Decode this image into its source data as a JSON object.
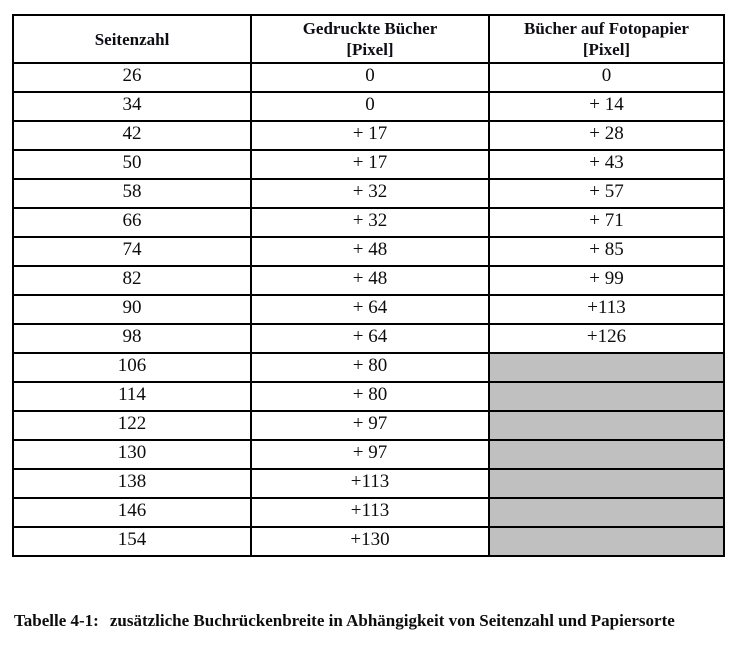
{
  "document": {
    "table": {
      "headers": [
        {
          "title": "Seitenzahl",
          "unit": ""
        },
        {
          "title": "Gedruckte Bücher",
          "unit": "[Pixel]"
        },
        {
          "title": "Bücher auf Fotopapier",
          "unit": "[Pixel]"
        }
      ],
      "rows": [
        {
          "seitenzahl": "26",
          "gedruckte_buecher": "0",
          "fotopapier": "0",
          "fotopapier_shaded": false
        },
        {
          "seitenzahl": "34",
          "gedruckte_buecher": "0",
          "fotopapier": "+ 14",
          "fotopapier_shaded": false
        },
        {
          "seitenzahl": "42",
          "gedruckte_buecher": "+ 17",
          "fotopapier": "+ 28",
          "fotopapier_shaded": false
        },
        {
          "seitenzahl": "50",
          "gedruckte_buecher": "+ 17",
          "fotopapier": "+ 43",
          "fotopapier_shaded": false
        },
        {
          "seitenzahl": "58",
          "gedruckte_buecher": "+ 32",
          "fotopapier": "+ 57",
          "fotopapier_shaded": false
        },
        {
          "seitenzahl": "66",
          "gedruckte_buecher": "+ 32",
          "fotopapier": "+ 71",
          "fotopapier_shaded": false
        },
        {
          "seitenzahl": "74",
          "gedruckte_buecher": "+ 48",
          "fotopapier": "+ 85",
          "fotopapier_shaded": false
        },
        {
          "seitenzahl": "82",
          "gedruckte_buecher": "+ 48",
          "fotopapier": "+ 99",
          "fotopapier_shaded": false
        },
        {
          "seitenzahl": "90",
          "gedruckte_buecher": "+ 64",
          "fotopapier": "+113",
          "fotopapier_shaded": false
        },
        {
          "seitenzahl": "98",
          "gedruckte_buecher": "+ 64",
          "fotopapier": "+126",
          "fotopapier_shaded": false
        },
        {
          "seitenzahl": "106",
          "gedruckte_buecher": "+ 80",
          "fotopapier": "",
          "fotopapier_shaded": true
        },
        {
          "seitenzahl": "114",
          "gedruckte_buecher": "+ 80",
          "fotopapier": "",
          "fotopapier_shaded": true
        },
        {
          "seitenzahl": "122",
          "gedruckte_buecher": "+ 97",
          "fotopapier": "",
          "fotopapier_shaded": true
        },
        {
          "seitenzahl": "130",
          "gedruckte_buecher": "+ 97",
          "fotopapier": "",
          "fotopapier_shaded": true
        },
        {
          "seitenzahl": "138",
          "gedruckte_buecher": "+113",
          "fotopapier": "",
          "fotopapier_shaded": true
        },
        {
          "seitenzahl": "146",
          "gedruckte_buecher": "+113",
          "fotopapier": "",
          "fotopapier_shaded": true
        },
        {
          "seitenzahl": "154",
          "gedruckte_buecher": "+130",
          "fotopapier": "",
          "fotopapier_shaded": true
        }
      ]
    },
    "caption": {
      "label": "Tabelle 4-1:",
      "text": "zusätzliche Buchrückenbreite in Abhängigkeit von Seitenzahl und Papiersorte"
    },
    "colors": {
      "shaded_cell": "#c0c0c0",
      "border": "#000000",
      "text": "#0d0d0d",
      "background": "#ffffff"
    }
  }
}
